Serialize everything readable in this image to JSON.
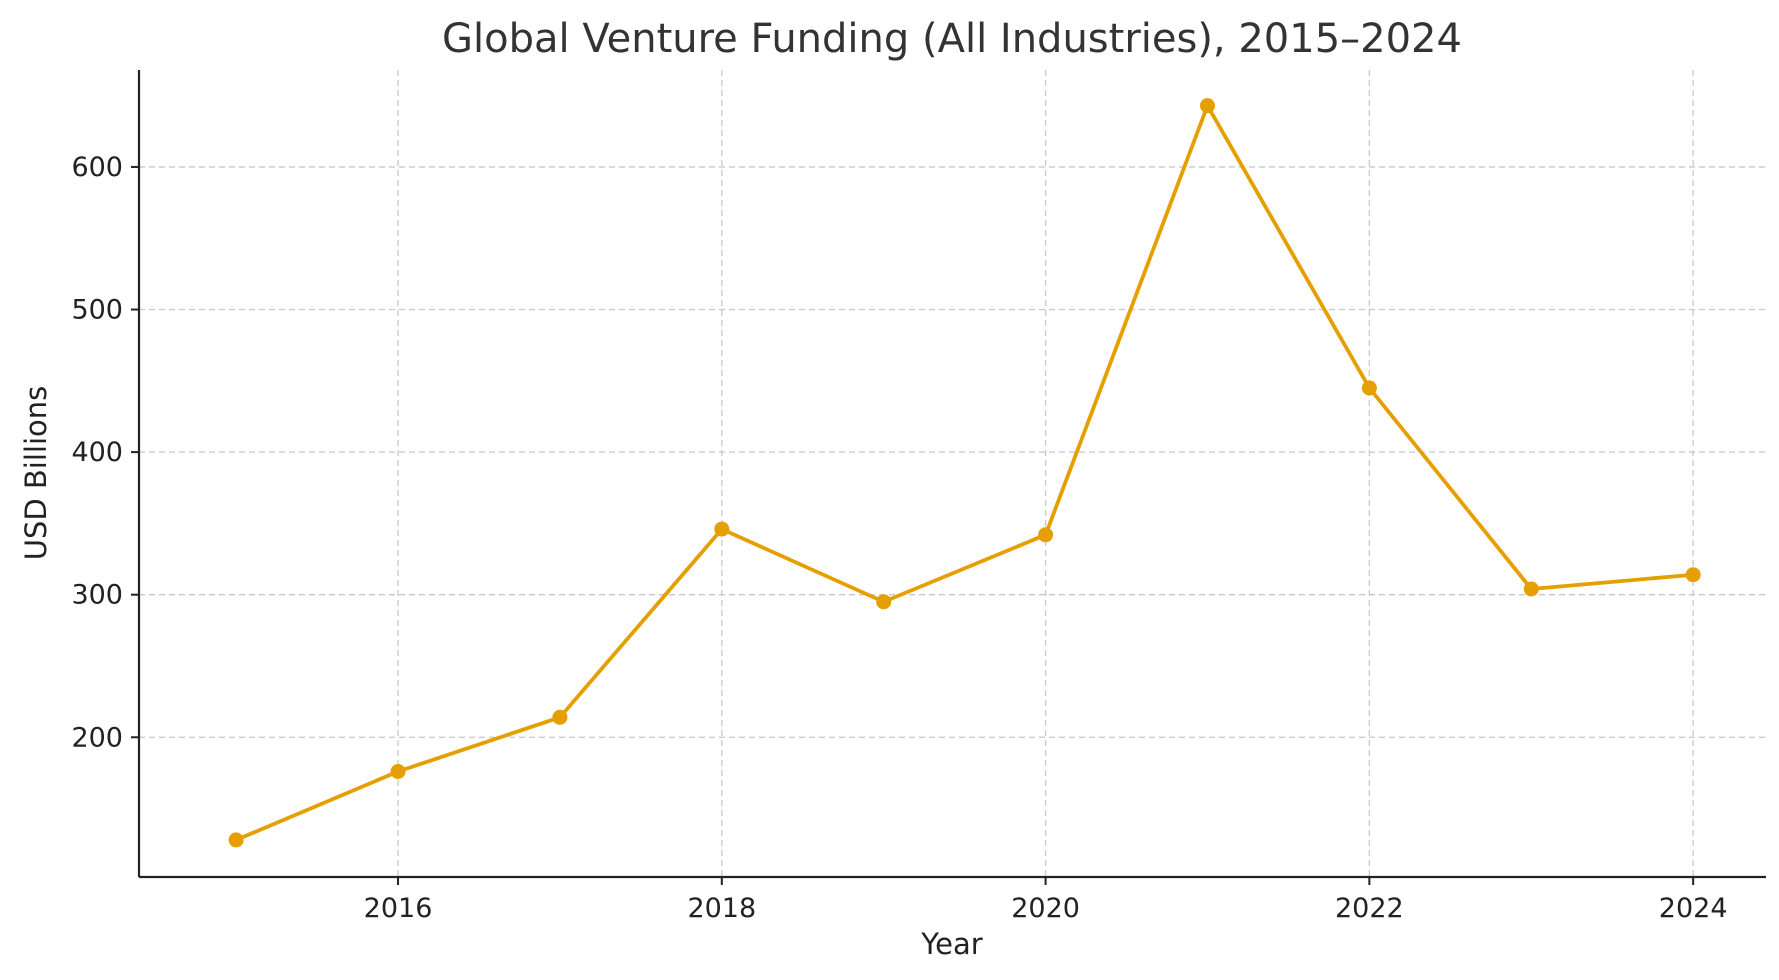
{
  "chart_data": {
    "type": "line",
    "title": "Global Venture Funding (All Industries), 2015–2024",
    "xlabel": "Year",
    "ylabel": "USD Billions",
    "x": [
      2015,
      2016,
      2017,
      2018,
      2019,
      2020,
      2021,
      2022,
      2023,
      2024
    ],
    "x_ticks": [
      "2016",
      "2018",
      "2020",
      "2022",
      "2024"
    ],
    "y_ticks": [
      "200",
      "300",
      "400",
      "500",
      "600"
    ],
    "xlim": [
      2014.4,
      2024.45
    ],
    "ylim": [
      102,
      668
    ],
    "grid": true,
    "series": [
      {
        "color": "#e69f00",
        "marker": "circle",
        "values": [
          128,
          176,
          214,
          346,
          295,
          342,
          643,
          445,
          304,
          314
        ]
      }
    ]
  }
}
